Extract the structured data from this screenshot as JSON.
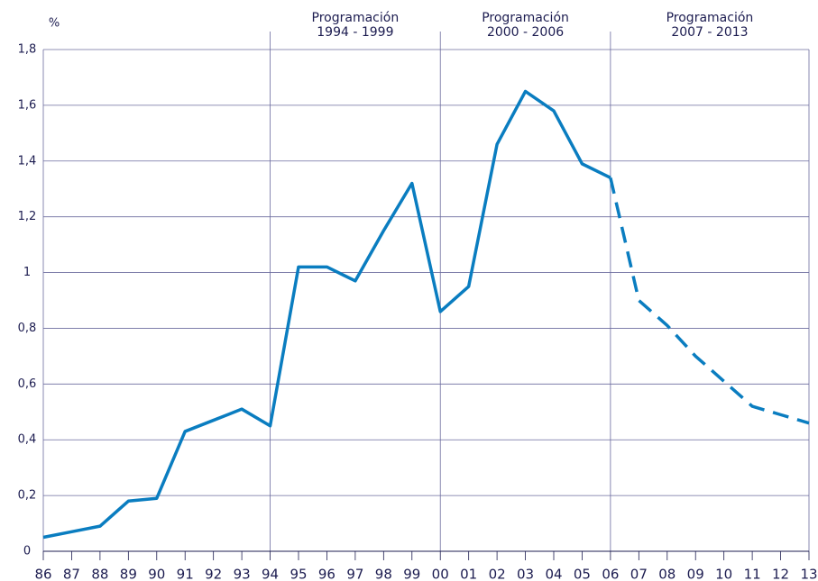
{
  "chart_data": {
    "type": "line",
    "y_label": "%",
    "categories": [
      "86",
      "87",
      "88",
      "89",
      "90",
      "91",
      "92",
      "93",
      "94",
      "95",
      "96",
      "97",
      "98",
      "99",
      "00",
      "01",
      "02",
      "03",
      "04",
      "05",
      "06",
      "07",
      "08",
      "09",
      "10",
      "11",
      "12",
      "13"
    ],
    "series": [
      {
        "color": "#0a7dc0",
        "dashed": false,
        "values": [
          0.05,
          0.07,
          0.09,
          0.18,
          0.19,
          0.43,
          0.47,
          0.51,
          0.45,
          1.02,
          1.02,
          0.97,
          1.15,
          1.32,
          0.86,
          0.95,
          1.46,
          1.65,
          1.58,
          1.39,
          1.34,
          null,
          null,
          null,
          null,
          null,
          null,
          null
        ]
      },
      {
        "color": "#0a7dc0",
        "dashed": true,
        "values": [
          null,
          null,
          null,
          null,
          null,
          null,
          null,
          null,
          null,
          null,
          null,
          null,
          null,
          null,
          null,
          null,
          null,
          null,
          null,
          null,
          1.34,
          0.9,
          0.81,
          0.7,
          0.61,
          0.52,
          0.49,
          0.46
        ]
      }
    ],
    "periods": [
      {
        "text": [
          "Programación",
          "1994 - 1999"
        ]
      },
      {
        "text": [
          "Programación",
          "2000 - 2006"
        ]
      },
      {
        "text": [
          "Programación",
          "2007 - 2013"
        ]
      }
    ],
    "ylim": [
      0,
      1.8
    ],
    "yticks": [
      0,
      {
        "value": 0.2,
        "label": "0,2"
      },
      {
        "value": 0.4,
        "label": "0,4"
      },
      {
        "value": 0.6,
        "label": "0,6"
      },
      {
        "value": 0.8,
        "label": "0,8"
      },
      1,
      {
        "value": 1.2,
        "label": "1,2"
      },
      {
        "value": 1.4,
        "label": "1,4"
      },
      {
        "value": 1.6,
        "label": "1,6"
      },
      {
        "value": 1.8,
        "label": "1,8"
      }
    ],
    "grid": true
  }
}
